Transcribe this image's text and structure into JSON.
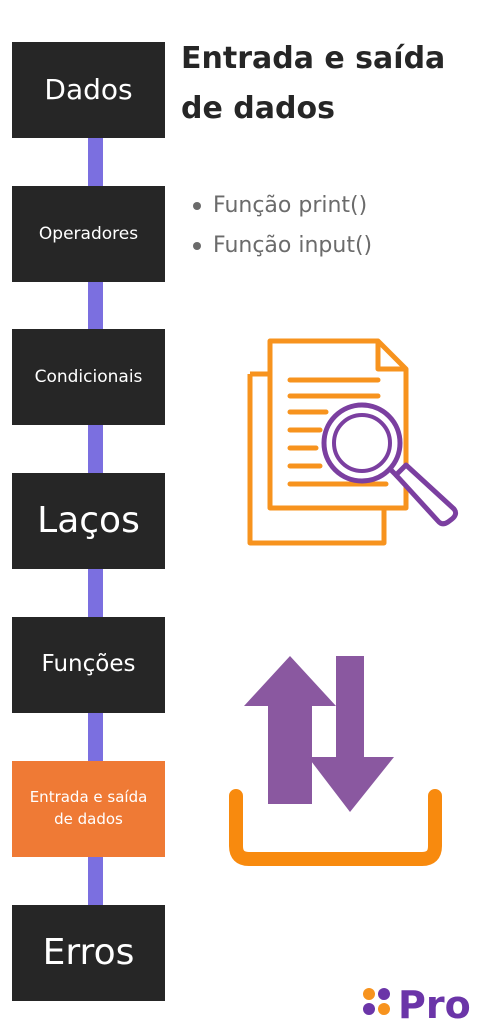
{
  "timeline": {
    "steps": [
      {
        "label": "Dados",
        "active": false
      },
      {
        "label": "Operadores",
        "active": false
      },
      {
        "label": "Condicionais",
        "active": false
      },
      {
        "label": "Laços",
        "active": false
      },
      {
        "label": "Funções",
        "active": false
      },
      {
        "label": "Entrada e saída de dados",
        "active": true
      },
      {
        "label": "Erros",
        "active": false
      }
    ]
  },
  "content": {
    "title": "Entrada e saída de dados",
    "bullets": [
      "Função print()",
      "Função input()"
    ]
  },
  "icons": [
    "document-search-icon",
    "upload-download-icon"
  ],
  "logo": {
    "text": "Pro"
  },
  "colors": {
    "step_bg": "#262626",
    "active_bg": "#ef7a35",
    "timeline_line": "#7b6fe0",
    "orange": "#f7931e",
    "purple": "#7b3fa0",
    "arrow_purple": "#8a58a0",
    "title_text": "#262626",
    "bullet_text": "#6b6b6b"
  }
}
